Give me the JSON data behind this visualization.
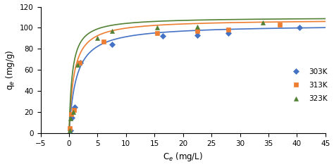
{
  "xlabel": "C$_e$ (mg/L)",
  "ylabel": "q$_e$ (mg/g)",
  "xlim": [
    -5,
    45
  ],
  "ylim": [
    0,
    120
  ],
  "xticks": [
    -5,
    0,
    5,
    10,
    15,
    20,
    25,
    30,
    35,
    40,
    45
  ],
  "yticks": [
    0,
    20,
    40,
    60,
    80,
    100,
    120
  ],
  "series": [
    {
      "label": "303K",
      "color": "#4472C4",
      "marker": "D",
      "markersize": 4.5,
      "x_data": [
        0.2,
        0.5,
        1.0,
        2.0,
        7.5,
        16.5,
        22.5,
        28.0,
        40.5
      ],
      "y_data": [
        3,
        15,
        25,
        67,
        84,
        92,
        93,
        95,
        100
      ],
      "qmax": 103,
      "KL": 0.8
    },
    {
      "label": "313K",
      "color": "#ED7D31",
      "marker": "s",
      "markersize": 4.5,
      "x_data": [
        0.15,
        0.4,
        0.9,
        1.8,
        6.0,
        15.5,
        22.5,
        28.0,
        37.0
      ],
      "y_data": [
        5,
        18,
        22,
        67,
        87,
        95,
        97,
        98,
        103
      ],
      "qmax": 108,
      "KL": 1.2
    },
    {
      "label": "323K",
      "color": "#548235",
      "marker": "^",
      "markersize": 5,
      "x_data": [
        0.1,
        0.3,
        0.7,
        1.5,
        5.0,
        7.5,
        15.5,
        22.5,
        34.0
      ],
      "y_data": [
        3,
        14,
        20,
        65,
        90,
        97,
        100,
        101,
        105
      ],
      "qmax": 110,
      "KL": 1.8
    }
  ]
}
